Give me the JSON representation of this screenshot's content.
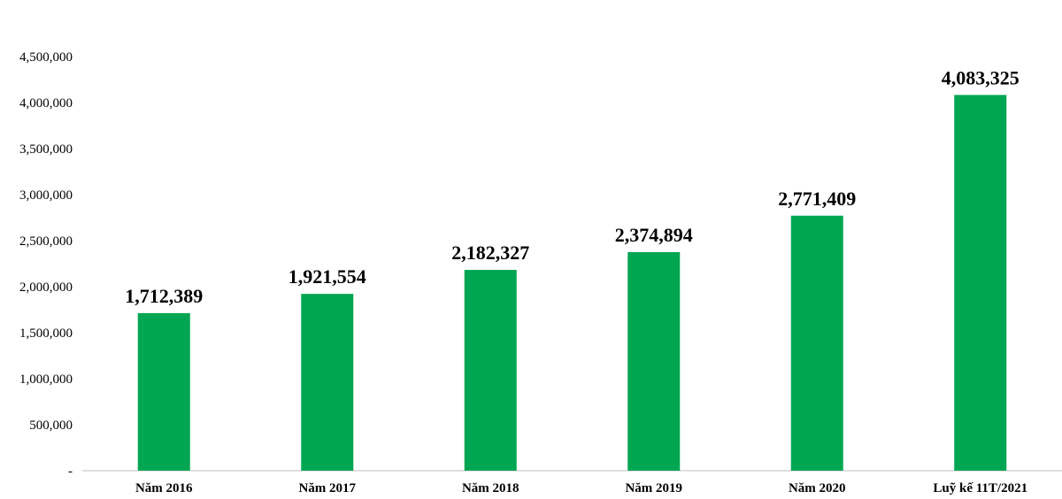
{
  "chart_data": {
    "type": "bar",
    "categories": [
      "Năm 2016",
      "Năm 2017",
      "Năm 2018",
      "Năm 2019",
      "Năm 2020",
      "Luỹ kế 11T/2021"
    ],
    "values": [
      1712389,
      1921554,
      2182327,
      2374894,
      2771409,
      4083325
    ],
    "data_labels": [
      "1,712,389",
      "1,921,554",
      "2,182,327",
      "2,374,894",
      "2,771,409",
      "4,083,325"
    ],
    "y_tick_labels": [
      "-",
      "500,000",
      "1,000,000",
      "1,500,000",
      "2,000,000",
      "2,500,000",
      "3,000,000",
      "3,500,000",
      "4,000,000",
      "4,500,000"
    ],
    "y_tick_values": [
      0,
      500000,
      1000000,
      1500000,
      2000000,
      2500000,
      3000000,
      3500000,
      4000000,
      4500000
    ],
    "ylim": [
      0,
      4500000
    ],
    "bar_color": "#00A651",
    "grid": false,
    "legend": "none",
    "title": "",
    "xlabel": "",
    "ylabel": ""
  }
}
